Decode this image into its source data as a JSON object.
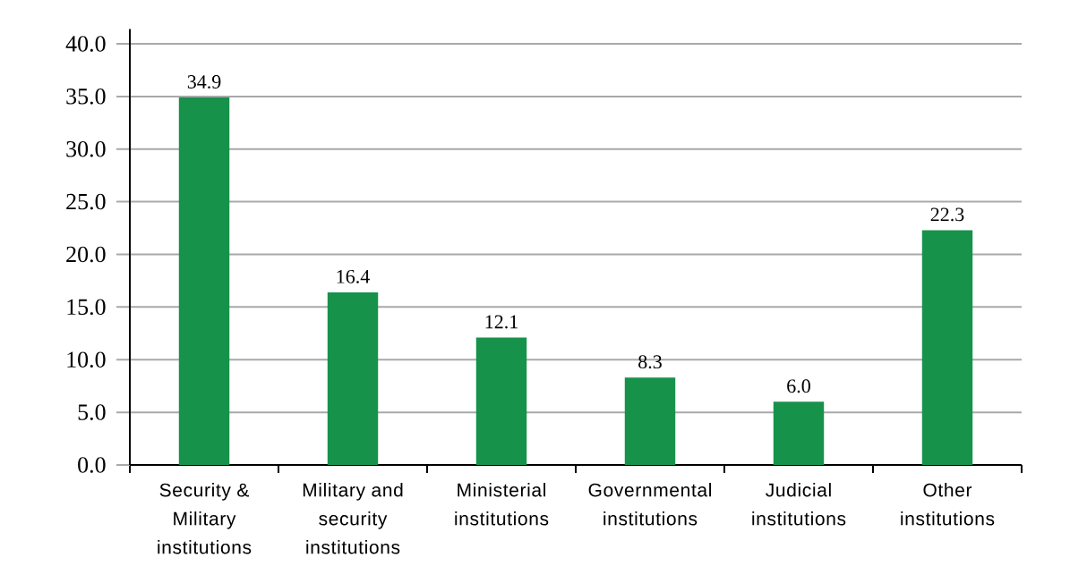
{
  "chart_data": {
    "type": "bar",
    "categories": [
      "Security & Military institutions",
      "Military and security institutions",
      "Ministerial institutions",
      "Governmental institutions",
      "Judicial institutions",
      "Other institutions"
    ],
    "values": [
      34.9,
      16.4,
      12.1,
      8.3,
      6.0,
      22.3
    ],
    "value_labels": [
      "34.9",
      "16.4",
      "12.1",
      "8.3",
      "6.0",
      "22.3"
    ],
    "color": "#17924a",
    "ylim": [
      0,
      41.4
    ],
    "yticks": [
      {
        "value": 0,
        "label": "0.0"
      },
      {
        "value": 5,
        "label": "5.0"
      },
      {
        "value": 10,
        "label": "10.0"
      },
      {
        "value": 15,
        "label": "15.0"
      },
      {
        "value": 20,
        "label": "20.0"
      },
      {
        "value": 25,
        "label": "25.0"
      },
      {
        "value": 30,
        "label": "30.0"
      },
      {
        "value": 35,
        "label": "35.0"
      },
      {
        "value": 40,
        "label": "40.0"
      }
    ],
    "grid": "y"
  }
}
